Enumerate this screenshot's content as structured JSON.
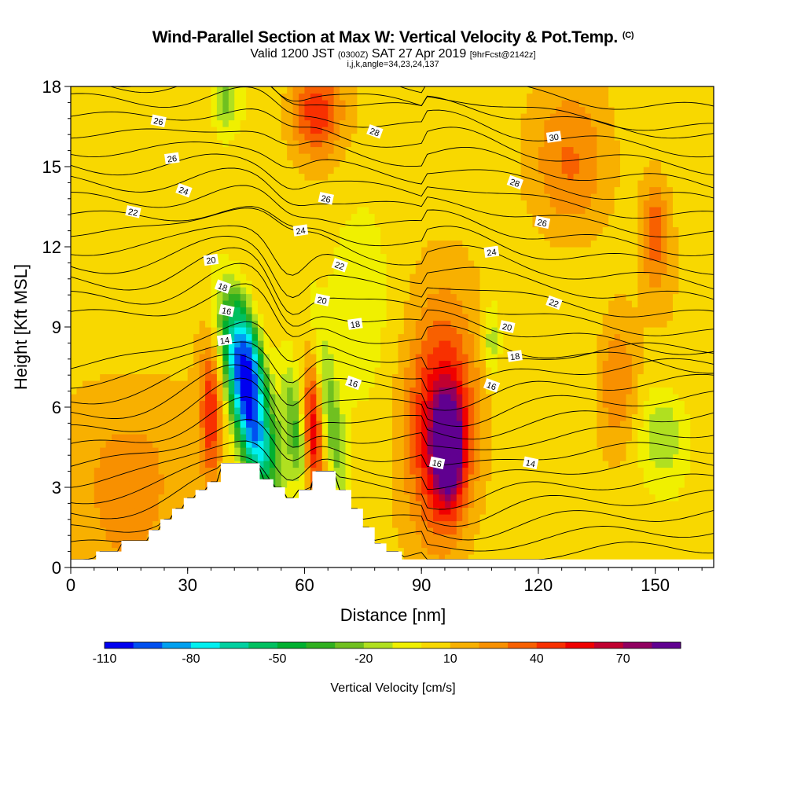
{
  "header": {
    "title": "Wind-Parallel Section at Max W: Vertical Velocity & Pot.Temp.",
    "copyright": "(C)",
    "valid_prefix": "Valid 1200 JST",
    "valid_utc": "(0300Z)",
    "valid_date": "SAT 27 Apr 2019",
    "forecast": "[9hrFcst@2142z]",
    "indices": "i,j,k,angle=34,23,24,137"
  },
  "chart_data": {
    "type": "heatmap",
    "title": "Wind-Parallel Section at Max W: Vertical Velocity & Pot.Temp.",
    "xlabel": "Distance [nm]",
    "ylabel": "Height [Kft MSL]",
    "xlim": [
      0,
      165
    ],
    "ylim": [
      0,
      18
    ],
    "xticks": [
      0,
      30,
      60,
      90,
      120,
      150
    ],
    "yticks": [
      0,
      3,
      6,
      9,
      12,
      15,
      18
    ],
    "colorbar": {
      "label": "Vertical Velocity [cm/s]",
      "tick_labels": [
        "-110",
        "-80",
        "-50",
        "-20",
        "10",
        "40",
        "70"
      ],
      "tick_values": [
        -110,
        -80,
        -50,
        -20,
        10,
        40,
        70
      ],
      "levels": [
        -110,
        -100,
        -90,
        -80,
        -70,
        -60,
        -50,
        -40,
        -30,
        -20,
        -10,
        0,
        10,
        20,
        30,
        40,
        50,
        60,
        70,
        80
      ],
      "colors": [
        "#0000f0",
        "#0050f0",
        "#00a0f0",
        "#00f0f0",
        "#00d0a0",
        "#00c060",
        "#00b030",
        "#30b020",
        "#70c020",
        "#b0e020",
        "#f0f000",
        "#f8d800",
        "#f8b000",
        "#f89000",
        "#f86000",
        "#f83000",
        "#f00000",
        "#c00030",
        "#900060",
        "#600090"
      ]
    },
    "background_w": 5,
    "w_features": [
      {
        "x": 44,
        "z": 6.5,
        "sx": 2.8,
        "sz": 2.2,
        "tilt": -0.45,
        "value": -90
      },
      {
        "x": 46,
        "z": 8.0,
        "sx": 2.5,
        "sz": 1.6,
        "tilt": -0.45,
        "value": -75
      },
      {
        "x": 50,
        "z": 4.5,
        "sx": 3.5,
        "sz": 1.3,
        "tilt": -0.3,
        "value": -35
      },
      {
        "x": 36,
        "z": 5.8,
        "sx": 2.0,
        "sz": 2.0,
        "tilt": 0.0,
        "value": 40
      },
      {
        "x": 62,
        "z": 5.0,
        "sx": 1.9,
        "sz": 2.1,
        "tilt": 0.0,
        "value": 55
      },
      {
        "x": 58,
        "z": 5.0,
        "sx": 2.0,
        "sz": 1.8,
        "tilt": -0.3,
        "value": -40
      },
      {
        "x": 67,
        "z": 5.5,
        "sx": 2.0,
        "sz": 2.5,
        "tilt": -0.35,
        "value": -35
      },
      {
        "x": 95,
        "z": 5.0,
        "sx": 6.0,
        "sz": 3.0,
        "tilt": 0.0,
        "value": 60
      },
      {
        "x": 97,
        "z": 4.5,
        "sx": 2.5,
        "sz": 1.3,
        "tilt": 0.0,
        "value": 78
      },
      {
        "x": 63,
        "z": 17.0,
        "sx": 4.5,
        "sz": 1.2,
        "tilt": 0.0,
        "value": 40
      },
      {
        "x": 140,
        "z": 7.0,
        "sx": 3.5,
        "sz": 1.8,
        "tilt": 0.0,
        "value": 25
      },
      {
        "x": 150,
        "z": 12.5,
        "sx": 2.5,
        "sz": 1.5,
        "tilt": 0.0,
        "value": 30
      },
      {
        "x": 152,
        "z": 5.0,
        "sx": 4.0,
        "sz": 1.2,
        "tilt": 0.0,
        "value": -25
      },
      {
        "x": 40,
        "z": 17.5,
        "sx": 2.0,
        "sz": 0.8,
        "tilt": 0.0,
        "value": -25
      },
      {
        "x": 108,
        "z": 8.5,
        "sx": 1.5,
        "sz": 1.0,
        "tilt": 0.0,
        "value": -25
      },
      {
        "x": 128,
        "z": 15.0,
        "sx": 7.0,
        "sz": 2.0,
        "tilt": 0.0,
        "value": 25
      },
      {
        "x": 75,
        "z": 10.0,
        "sx": 5.0,
        "sz": 3.0,
        "tilt": 0.0,
        "value": -8
      },
      {
        "x": 15,
        "z": 3.5,
        "sx": 12.0,
        "sz": 3.0,
        "tilt": 0.0,
        "value": 18
      }
    ],
    "terrain": [
      {
        "x": 0,
        "z": 0.3
      },
      {
        "x": 6.5,
        "z": 0.6
      },
      {
        "x": 13,
        "z": 1.0
      },
      {
        "x": 20,
        "z": 1.4
      },
      {
        "x": 23,
        "z": 1.8
      },
      {
        "x": 26,
        "z": 2.2
      },
      {
        "x": 29,
        "z": 2.6
      },
      {
        "x": 32,
        "z": 2.9
      },
      {
        "x": 35,
        "z": 3.2
      },
      {
        "x": 38.5,
        "z": 3.9
      },
      {
        "x": 48.5,
        "z": 3.3
      },
      {
        "x": 52,
        "z": 3.0
      },
      {
        "x": 55,
        "z": 2.6
      },
      {
        "x": 58.5,
        "z": 2.9
      },
      {
        "x": 62,
        "z": 3.6
      },
      {
        "x": 68,
        "z": 2.9
      },
      {
        "x": 72,
        "z": 2.2
      },
      {
        "x": 75,
        "z": 1.5
      },
      {
        "x": 78,
        "z": 0.9
      },
      {
        "x": 81,
        "z": 0.6
      },
      {
        "x": 85,
        "z": 0.3
      }
    ],
    "theta_contours": {
      "interval": 1,
      "labels": [
        {
          "text": "26",
          "x": 22.5,
          "z": 16.7
        },
        {
          "text": "26",
          "x": 26,
          "z": 15.3
        },
        {
          "text": "24",
          "x": 29,
          "z": 14.1
        },
        {
          "text": "22",
          "x": 16,
          "z": 13.3
        },
        {
          "text": "20",
          "x": 36,
          "z": 11.5
        },
        {
          "text": "18",
          "x": 39,
          "z": 10.5
        },
        {
          "text": "16",
          "x": 40,
          "z": 9.6
        },
        {
          "text": "14",
          "x": 39.5,
          "z": 8.5
        },
        {
          "text": "28",
          "x": 78,
          "z": 16.3
        },
        {
          "text": "26",
          "x": 65.5,
          "z": 13.8
        },
        {
          "text": "24",
          "x": 59,
          "z": 12.6
        },
        {
          "text": "22",
          "x": 69,
          "z": 11.3
        },
        {
          "text": "20",
          "x": 64.5,
          "z": 10.0
        },
        {
          "text": "18",
          "x": 73,
          "z": 9.1
        },
        {
          "text": "16",
          "x": 72.5,
          "z": 6.9
        },
        {
          "text": "16",
          "x": 94,
          "z": 3.9
        },
        {
          "text": "30",
          "x": 124,
          "z": 16.1
        },
        {
          "text": "28",
          "x": 114,
          "z": 14.4
        },
        {
          "text": "26",
          "x": 121,
          "z": 12.9
        },
        {
          "text": "24",
          "x": 108,
          "z": 11.8
        },
        {
          "text": "22",
          "x": 124,
          "z": 9.9
        },
        {
          "text": "20",
          "x": 112,
          "z": 9.0
        },
        {
          "text": "18",
          "x": 114,
          "z": 7.9
        },
        {
          "text": "16",
          "x": 108,
          "z": 6.8
        },
        {
          "text": "14",
          "x": 118,
          "z": 3.9
        }
      ]
    }
  }
}
